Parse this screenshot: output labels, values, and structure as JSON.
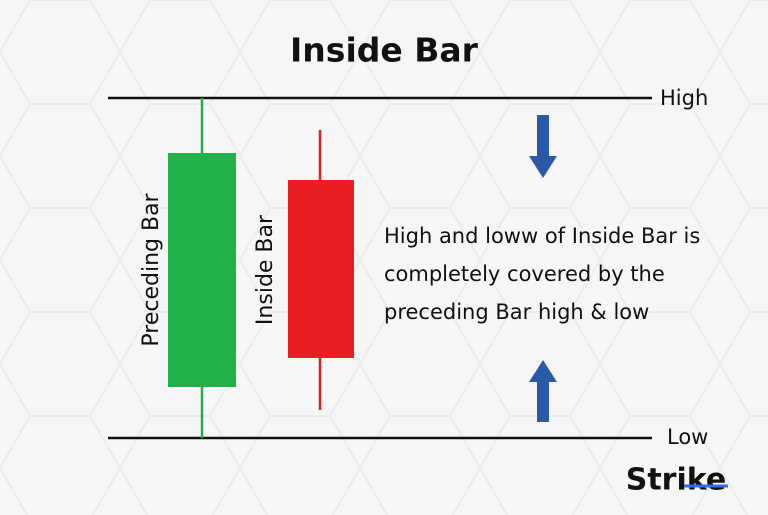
{
  "header": {
    "title": "Inside Bar"
  },
  "levels": {
    "high": "High",
    "low": "Low"
  },
  "candles": [
    {
      "label": "Preceding Bar"
    },
    {
      "label": "Inside Bar"
    }
  ],
  "description": {
    "lines": [
      "High and loww of Inside Bar is",
      "completely covered by the",
      "preceding Bar high & low"
    ]
  },
  "logo": {
    "text": "Strike"
  }
}
